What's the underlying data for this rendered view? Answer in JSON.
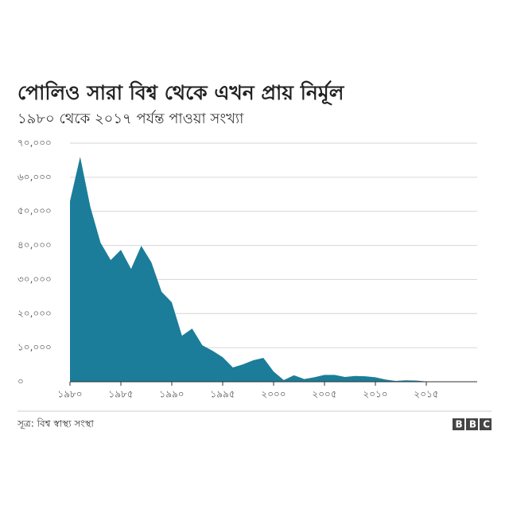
{
  "chart_data": {
    "type": "area",
    "title": "পোলিও সারা বিশ্ব থেকে এখন প্রায় নির্মূল",
    "subtitle": "১৯৮০ থেকে ২০১৭ পর্যন্ত পাওয়া সংখ্যা",
    "source": "সূত্র: বিশ্ব স্বাস্থ্য সংস্থা",
    "logo": "BBC",
    "color": "#1b7d99",
    "grid": true,
    "x": [
      1980,
      1981,
      1982,
      1983,
      1984,
      1985,
      1986,
      1987,
      1988,
      1989,
      1990,
      1991,
      1992,
      1993,
      1994,
      1995,
      1996,
      1997,
      1998,
      1999,
      2000,
      2001,
      2002,
      2003,
      2004,
      2005,
      2006,
      2007,
      2008,
      2009,
      2010,
      2011,
      2012,
      2013,
      2014,
      2015,
      2016,
      2017
    ],
    "values": [
      53000,
      66000,
      51300,
      40800,
      35700,
      38700,
      33100,
      39900,
      35000,
      26400,
      23300,
      13500,
      15600,
      10700,
      9100,
      7200,
      4200,
      5100,
      6300,
      7000,
      3000,
      500,
      1900,
      800,
      1300,
      2000,
      2000,
      1400,
      1700,
      1600,
      1300,
      650,
      220,
      420,
      360,
      74,
      37,
      22
    ],
    "xlim": [
      1980,
      2020
    ],
    "ylim": [
      0,
      70000
    ],
    "yticks": [
      {
        "value": 0,
        "label": "০"
      },
      {
        "value": 10000,
        "label": "১০,০০০"
      },
      {
        "value": 20000,
        "label": "২০,০০০"
      },
      {
        "value": 30000,
        "label": "৩০,০০০"
      },
      {
        "value": 40000,
        "label": "৪০,০০০"
      },
      {
        "value": 50000,
        "label": "৫০,০০০"
      },
      {
        "value": 60000,
        "label": "৬০,০০০"
      },
      {
        "value": 70000,
        "label": "৭০,০০০"
      }
    ],
    "xticks": [
      {
        "value": 1980,
        "label": "১৯৮০"
      },
      {
        "value": 1985,
        "label": "১৯৮৫"
      },
      {
        "value": 1990,
        "label": "১৯৯০"
      },
      {
        "value": 1995,
        "label": "১৯৯৫"
      },
      {
        "value": 2000,
        "label": "২০০০"
      },
      {
        "value": 2005,
        "label": "২০০৫"
      },
      {
        "value": 2010,
        "label": "২০১০"
      },
      {
        "value": 2015,
        "label": "২০১৫"
      }
    ]
  }
}
